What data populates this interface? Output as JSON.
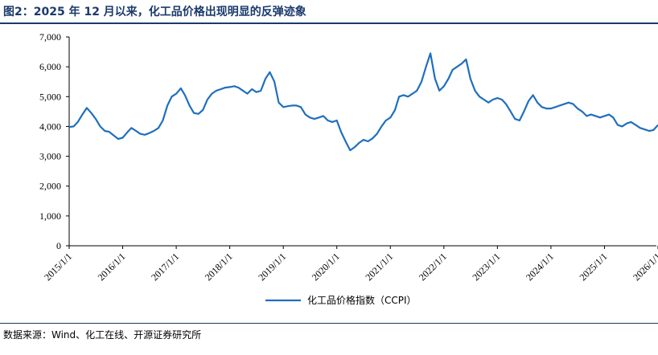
{
  "header": {
    "title": "图2：2025 年 12 月以来，化工品价格出现明显的反弹迹象"
  },
  "footer": {
    "source": "数据来源：Wind、化工在线、开源证券研究所"
  },
  "chart_data": {
    "type": "line",
    "title": "",
    "xlabel": "",
    "ylabel": "",
    "ylim": [
      0,
      7000
    ],
    "yticks": [
      "0",
      "1,000",
      "2,000",
      "3,000",
      "4,000",
      "5,000",
      "6,000",
      "7,000"
    ],
    "xticks": [
      "2015/1/1",
      "2016/1/1",
      "2017/1/1",
      "2018/1/1",
      "2019/1/1",
      "2020/1/1",
      "2021/1/1",
      "2022/1/1",
      "2023/1/1",
      "2024/1/1",
      "2025/1/1",
      "2026/1/1"
    ],
    "legend": "bottom-center",
    "grid": false,
    "series": [
      {
        "name": "化工品价格指数（CCPI）",
        "color": "#1f6fbf",
        "points": [
          [
            "2015-01-01",
            3980
          ],
          [
            "2015-02-01",
            4000
          ],
          [
            "2015-03-01",
            4150
          ],
          [
            "2015-04-01",
            4400
          ],
          [
            "2015-05-01",
            4620
          ],
          [
            "2015-06-01",
            4450
          ],
          [
            "2015-07-01",
            4250
          ],
          [
            "2015-08-01",
            4000
          ],
          [
            "2015-09-01",
            3850
          ],
          [
            "2015-10-01",
            3820
          ],
          [
            "2015-11-01",
            3700
          ],
          [
            "2015-12-01",
            3580
          ],
          [
            "2016-01-01",
            3620
          ],
          [
            "2016-02-01",
            3800
          ],
          [
            "2016-03-01",
            3950
          ],
          [
            "2016-04-01",
            3850
          ],
          [
            "2016-05-01",
            3750
          ],
          [
            "2016-06-01",
            3720
          ],
          [
            "2016-07-01",
            3780
          ],
          [
            "2016-08-01",
            3850
          ],
          [
            "2016-09-01",
            3950
          ],
          [
            "2016-10-01",
            4200
          ],
          [
            "2016-11-01",
            4700
          ],
          [
            "2016-12-01",
            5000
          ],
          [
            "2017-01-01",
            5100
          ],
          [
            "2017-02-01",
            5280
          ],
          [
            "2017-03-01",
            5050
          ],
          [
            "2017-04-01",
            4700
          ],
          [
            "2017-05-01",
            4450
          ],
          [
            "2017-06-01",
            4420
          ],
          [
            "2017-07-01",
            4550
          ],
          [
            "2017-08-01",
            4900
          ],
          [
            "2017-09-01",
            5100
          ],
          [
            "2017-10-01",
            5200
          ],
          [
            "2017-11-01",
            5250
          ],
          [
            "2017-12-01",
            5300
          ],
          [
            "2018-01-01",
            5320
          ],
          [
            "2018-02-01",
            5350
          ],
          [
            "2018-03-01",
            5300
          ],
          [
            "2018-04-01",
            5200
          ],
          [
            "2018-05-01",
            5100
          ],
          [
            "2018-06-01",
            5250
          ],
          [
            "2018-07-01",
            5150
          ],
          [
            "2018-08-01",
            5200
          ],
          [
            "2018-09-01",
            5600
          ],
          [
            "2018-10-01",
            5820
          ],
          [
            "2018-11-01",
            5500
          ],
          [
            "2018-12-01",
            4800
          ],
          [
            "2019-01-01",
            4650
          ],
          [
            "2019-02-01",
            4680
          ],
          [
            "2019-03-01",
            4700
          ],
          [
            "2019-04-01",
            4700
          ],
          [
            "2019-05-01",
            4650
          ],
          [
            "2019-06-01",
            4400
          ],
          [
            "2019-07-01",
            4300
          ],
          [
            "2019-08-01",
            4250
          ],
          [
            "2019-09-01",
            4300
          ],
          [
            "2019-10-01",
            4350
          ],
          [
            "2019-11-01",
            4200
          ],
          [
            "2019-12-01",
            4150
          ],
          [
            "2020-01-01",
            4200
          ],
          [
            "2020-02-01",
            3800
          ],
          [
            "2020-03-01",
            3500
          ],
          [
            "2020-04-01",
            3200
          ],
          [
            "2020-05-01",
            3300
          ],
          [
            "2020-06-01",
            3450
          ],
          [
            "2020-07-01",
            3550
          ],
          [
            "2020-08-01",
            3500
          ],
          [
            "2020-09-01",
            3600
          ],
          [
            "2020-10-01",
            3750
          ],
          [
            "2020-11-01",
            4000
          ],
          [
            "2020-12-01",
            4200
          ],
          [
            "2021-01-01",
            4300
          ],
          [
            "2021-02-01",
            4550
          ],
          [
            "2021-03-01",
            5000
          ],
          [
            "2021-04-01",
            5050
          ],
          [
            "2021-05-01",
            5000
          ],
          [
            "2021-06-01",
            5100
          ],
          [
            "2021-07-01",
            5200
          ],
          [
            "2021-08-01",
            5500
          ],
          [
            "2021-09-01",
            6000
          ],
          [
            "2021-10-01",
            6450
          ],
          [
            "2021-11-01",
            5600
          ],
          [
            "2021-12-01",
            5200
          ],
          [
            "2022-01-01",
            5350
          ],
          [
            "2022-02-01",
            5600
          ],
          [
            "2022-03-01",
            5900
          ],
          [
            "2022-04-01",
            6000
          ],
          [
            "2022-05-01",
            6100
          ],
          [
            "2022-06-01",
            6250
          ],
          [
            "2022-07-01",
            5600
          ],
          [
            "2022-08-01",
            5200
          ],
          [
            "2022-09-01",
            5000
          ],
          [
            "2022-10-01",
            4900
          ],
          [
            "2022-11-01",
            4800
          ],
          [
            "2022-12-01",
            4900
          ],
          [
            "2023-01-01",
            4950
          ],
          [
            "2023-02-01",
            4900
          ],
          [
            "2023-03-01",
            4750
          ],
          [
            "2023-04-01",
            4500
          ],
          [
            "2023-05-01",
            4250
          ],
          [
            "2023-06-01",
            4200
          ],
          [
            "2023-07-01",
            4500
          ],
          [
            "2023-08-01",
            4850
          ],
          [
            "2023-09-01",
            5050
          ],
          [
            "2023-10-01",
            4800
          ],
          [
            "2023-11-01",
            4650
          ],
          [
            "2023-12-01",
            4600
          ],
          [
            "2024-01-01",
            4600
          ],
          [
            "2024-02-01",
            4650
          ],
          [
            "2024-03-01",
            4700
          ],
          [
            "2024-04-01",
            4750
          ],
          [
            "2024-05-01",
            4800
          ],
          [
            "2024-06-01",
            4750
          ],
          [
            "2024-07-01",
            4600
          ],
          [
            "2024-08-01",
            4500
          ],
          [
            "2024-09-01",
            4350
          ],
          [
            "2024-10-01",
            4400
          ],
          [
            "2024-11-01",
            4350
          ],
          [
            "2024-12-01",
            4300
          ],
          [
            "2025-01-01",
            4350
          ],
          [
            "2025-02-01",
            4400
          ],
          [
            "2025-03-01",
            4300
          ],
          [
            "2025-04-01",
            4050
          ],
          [
            "2025-05-01",
            4000
          ],
          [
            "2025-06-01",
            4100
          ],
          [
            "2025-07-01",
            4150
          ],
          [
            "2025-08-01",
            4050
          ],
          [
            "2025-09-01",
            3950
          ],
          [
            "2025-10-01",
            3900
          ],
          [
            "2025-11-01",
            3850
          ],
          [
            "2025-12-01",
            3880
          ],
          [
            "2026-01-01",
            4050
          ]
        ]
      }
    ]
  }
}
